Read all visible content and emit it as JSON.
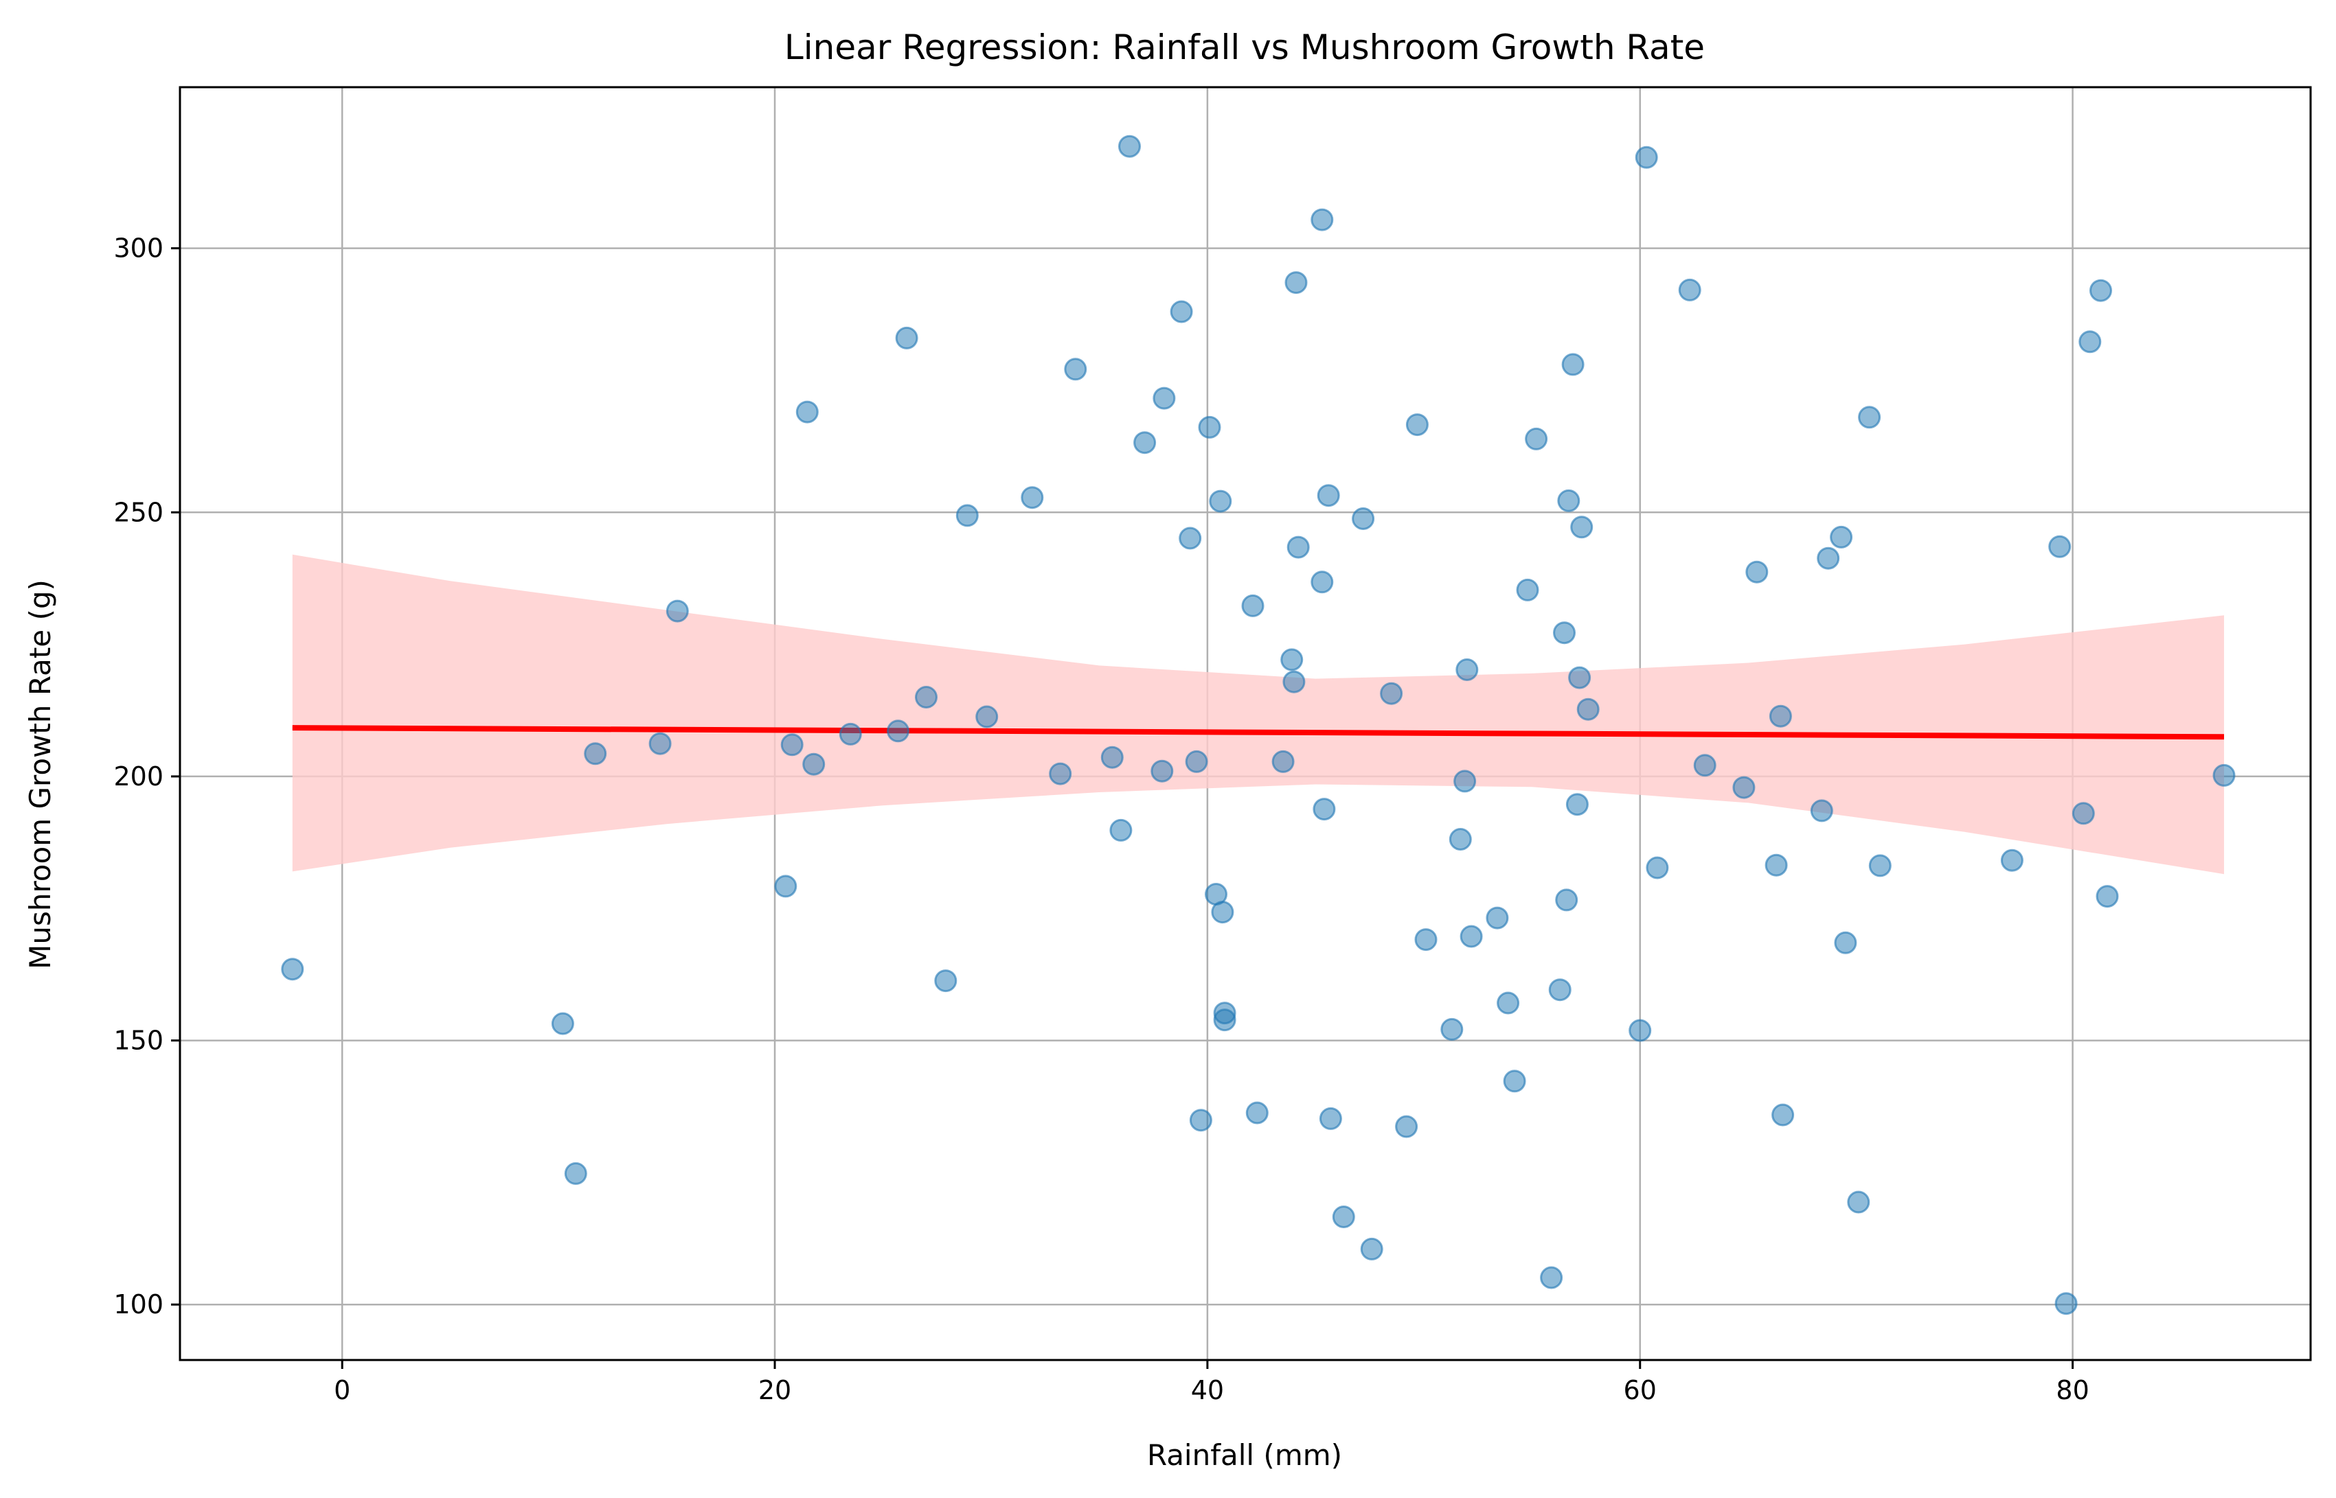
{
  "chart_data": {
    "type": "scatter",
    "title": "Linear Regression: Rainfall vs Mushroom Growth Rate",
    "xlabel": "Rainfall (mm)",
    "ylabel": "Mushroom Growth Rate (g)",
    "xlim": [
      -7.5,
      91.0
    ],
    "ylim": [
      89.5,
      330.5
    ],
    "xticks": [
      0,
      20,
      40,
      60,
      80
    ],
    "yticks": [
      100,
      150,
      200,
      250,
      300
    ],
    "xtick_labels": [
      "0",
      "20",
      "40",
      "60",
      "80"
    ],
    "ytick_labels": [
      "100",
      "150",
      "200",
      "250",
      "300"
    ],
    "grid": true,
    "colors": {
      "points": "#1f77b4",
      "regression_line": "#ff0000",
      "confidence_band": "#ffcccc",
      "grid": "#b0b0b0"
    },
    "regression": {
      "x": [
        -2.3,
        87.0
      ],
      "y": [
        209.2,
        207.5
      ]
    },
    "confidence_band": {
      "x": [
        -2.3,
        5,
        15,
        25,
        35,
        45,
        55,
        65,
        75,
        87.0
      ],
      "lower": [
        182.0,
        186.5,
        191.0,
        194.5,
        197.0,
        198.5,
        198.0,
        195.0,
        189.5,
        181.5
      ],
      "upper": [
        242.0,
        237.0,
        231.5,
        226.0,
        221.0,
        218.5,
        219.5,
        221.5,
        225.0,
        230.5
      ]
    },
    "points": {
      "x": [
        -2.3,
        10.2,
        10.8,
        11.7,
        14.7,
        15.5,
        20.5,
        20.8,
        21.5,
        21.8,
        23.5,
        25.7,
        26.1,
        27.0,
        27.9,
        28.9,
        29.8,
        31.9,
        33.2,
        33.9,
        35.6,
        36.0,
        36.4,
        37.1,
        37.9,
        38.0,
        38.8,
        39.2,
        39.5,
        39.7,
        40.1,
        40.4,
        40.6,
        40.7,
        40.8,
        40.8,
        42.1,
        42.3,
        43.5,
        43.9,
        44.0,
        44.1,
        44.2,
        45.3,
        45.3,
        45.4,
        45.6,
        45.7,
        46.3,
        47.2,
        47.6,
        48.5,
        49.2,
        49.7,
        50.1,
        51.3,
        51.7,
        51.9,
        52.0,
        52.2,
        53.4,
        53.9,
        54.2,
        54.8,
        55.2,
        55.9,
        56.3,
        56.5,
        56.6,
        56.7,
        56.9,
        57.1,
        57.2,
        57.3,
        57.6,
        60.0,
        60.3,
        60.8,
        62.3,
        63.0,
        64.8,
        65.4,
        66.3,
        66.5,
        66.6,
        68.4,
        68.7,
        69.3,
        69.5,
        70.1,
        70.6,
        71.1,
        77.2,
        79.4,
        79.7,
        80.5,
        80.8,
        81.3,
        81.6,
        87.0
      ],
      "y": [
        163.5,
        153.2,
        124.8,
        204.3,
        206.2,
        231.3,
        179.2,
        206.0,
        269.0,
        202.3,
        208.0,
        208.6,
        283.0,
        215.0,
        161.3,
        249.4,
        211.3,
        252.8,
        200.5,
        277.1,
        203.6,
        189.8,
        319.3,
        263.2,
        201.0,
        271.6,
        288.0,
        245.1,
        202.8,
        134.9,
        266.1,
        177.7,
        252.1,
        174.3,
        153.9,
        155.2,
        232.3,
        136.3,
        202.8,
        222.1,
        217.9,
        293.5,
        243.4,
        305.4,
        236.8,
        193.8,
        253.2,
        135.2,
        116.6,
        248.8,
        110.5,
        215.7,
        133.7,
        266.6,
        169.1,
        152.1,
        188.1,
        199.1,
        220.2,
        169.7,
        173.2,
        157.1,
        142.3,
        235.3,
        263.9,
        105.1,
        159.6,
        227.2,
        176.6,
        252.2,
        278.0,
        194.7,
        218.7,
        247.2,
        212.7,
        151.9,
        317.2,
        182.7,
        292.1,
        202.1,
        197.9,
        238.7,
        183.2,
        211.4,
        135.9,
        193.5,
        241.3,
        245.3,
        168.5,
        119.4,
        268.0,
        183.1,
        184.1,
        243.5,
        100.2,
        193.0,
        282.3,
        292.0,
        177.3,
        200.2
      ]
    }
  }
}
